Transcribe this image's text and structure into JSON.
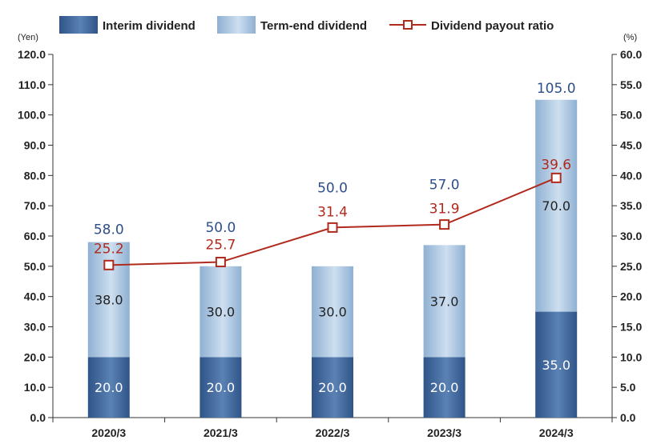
{
  "legend": {
    "interim": "Interim dividend",
    "term_end": "Term-end dividend",
    "ratio": "Dividend payout ratio"
  },
  "axes": {
    "left_unit": "(Yen)",
    "right_unit": "(%)",
    "left_ticks": [
      "0.0",
      "10.0",
      "20.0",
      "30.0",
      "40.0",
      "50.0",
      "60.0",
      "70.0",
      "80.0",
      "90.0",
      "100.0",
      "110.0",
      "120.0"
    ],
    "right_ticks": [
      "0.0",
      "5.0",
      "10.0",
      "15.0",
      "20.0",
      "25.0",
      "30.0",
      "35.0",
      "40.0",
      "45.0",
      "50.0",
      "55.0",
      "60.0"
    ]
  },
  "colors": {
    "interim": "#3c6499",
    "term_end": "#a8c2dc",
    "ratio_line": "#b02a1d",
    "total_label": "#2d4f8a"
  },
  "chart_data": {
    "type": "bar",
    "stacked": true,
    "categories": [
      "2020/3",
      "2021/3",
      "2022/3",
      "2023/3",
      "2024/3"
    ],
    "series": [
      {
        "name": "Interim dividend",
        "values": [
          20.0,
          20.0,
          20.0,
          20.0,
          35.0
        ],
        "labels": [
          "20.0",
          "20.0",
          "20.0",
          "20.0",
          "35.0"
        ]
      },
      {
        "name": "Term-end dividend",
        "values": [
          38.0,
          30.0,
          30.0,
          37.0,
          70.0
        ],
        "labels": [
          "38.0",
          "30.0",
          "30.0",
          "37.0",
          "70.0"
        ]
      },
      {
        "name": "Dividend payout ratio",
        "type": "line",
        "axis": "right",
        "values": [
          25.2,
          25.7,
          31.4,
          31.9,
          39.6
        ],
        "labels": [
          "25.2",
          "25.7",
          "31.4",
          "31.9",
          "39.6"
        ]
      }
    ],
    "totals": [
      58.0,
      50.0,
      50.0,
      57.0,
      105.0
    ],
    "total_labels": [
      "58.0",
      "50.0",
      "50.0",
      "57.0",
      "105.0"
    ],
    "ylabel": "(Yen)",
    "y2label": "(%)",
    "ylim": [
      0,
      120
    ],
    "y2lim": [
      0,
      60
    ],
    "legend_position": "top"
  }
}
